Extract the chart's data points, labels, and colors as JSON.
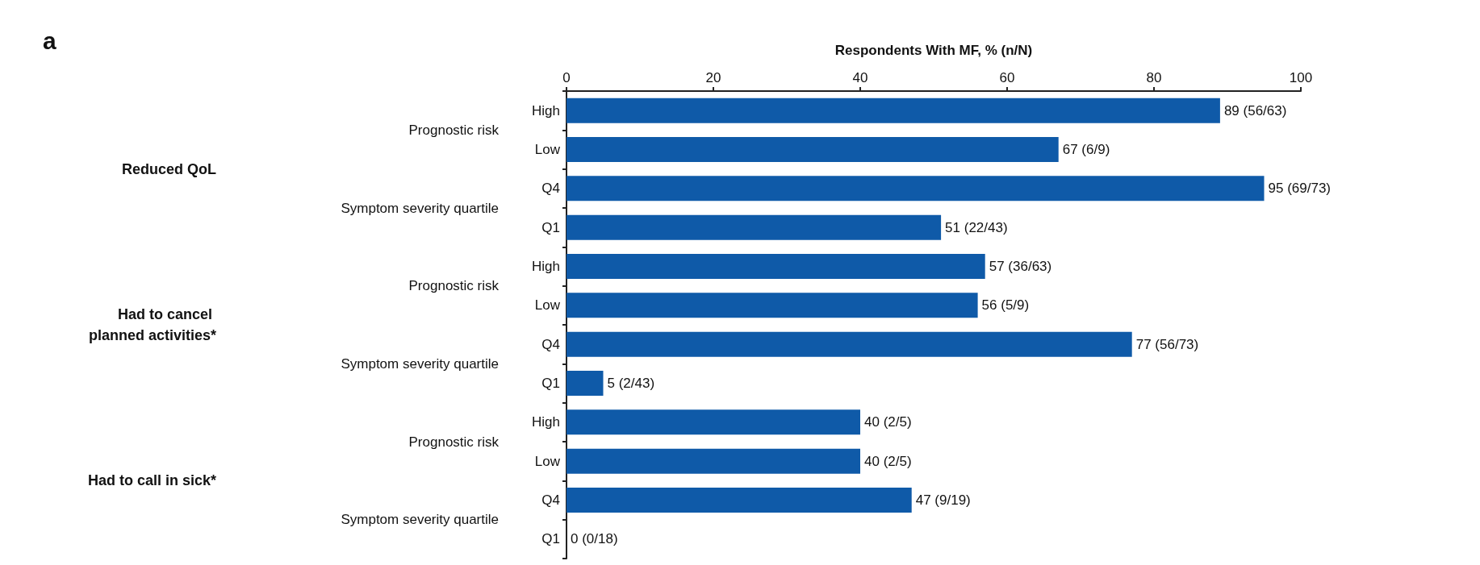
{
  "chart_data": {
    "type": "bar",
    "orientation": "horizontal",
    "title": "a",
    "xlabel": "Respondents With MF, % (n/N)",
    "categories": [
      "High",
      "Low",
      "Q4",
      "Q1",
      "High",
      "Low",
      "Q4",
      "Q1",
      "High",
      "Low",
      "Q4",
      "Q1"
    ],
    "values": [
      89,
      67,
      95,
      51,
      57,
      56,
      77,
      5,
      40,
      40,
      47,
      0
    ],
    "value_labels": [
      "89 (56/63)",
      "67 (6/9)",
      "95 (69/73)",
      "51 (22/43)",
      "57 (36/63)",
      "56 (5/9)",
      "77 (56/73)",
      "5 (2/43)",
      "40 (2/5)",
      "40 (2/5)",
      "47 (9/19)",
      "0 (0/18)"
    ],
    "color": "#0f5aa8",
    "xlim": [
      0,
      100
    ],
    "xticks": [
      0,
      20,
      40,
      60,
      80,
      100
    ],
    "grid": false,
    "annotations": [
      "Reduced QoL",
      "Prognostic risk",
      "Symptom severity quartile",
      "Had to cancel planned activities*",
      "Prognostic risk",
      "Symptom severity quartile",
      "Had to call in sick*",
      "Prognostic risk",
      "Symptom severity quartile"
    ]
  }
}
